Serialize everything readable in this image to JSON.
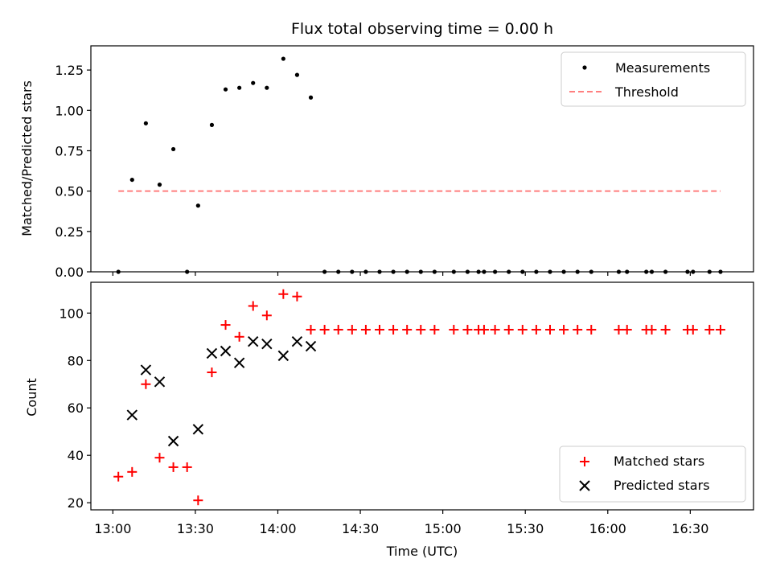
{
  "chart_data": [
    {
      "type": "scatter",
      "title": "Flux total observing time = 0.00 h",
      "xlabel": "",
      "ylabel": "Matched/Predicted stars",
      "ylim": [
        0,
        1.4
      ],
      "yticks": [
        0.0,
        0.25,
        0.5,
        0.75,
        1.0,
        1.25
      ],
      "ytick_labels": [
        "0.00",
        "0.25",
        "0.50",
        "0.75",
        "1.00",
        "1.25"
      ],
      "xlim_minutes": [
        772,
        1013
      ],
      "legend_position": "top-right",
      "series": [
        {
          "name": "Measurements",
          "marker": "dot",
          "color": "#000000",
          "x": [
            "13:02",
            "13:07",
            "13:12",
            "13:17",
            "13:22",
            "13:27",
            "13:31",
            "13:36",
            "13:41",
            "13:46",
            "13:51",
            "13:56",
            "14:02",
            "14:07",
            "14:12",
            "14:17",
            "14:22",
            "14:27",
            "14:32",
            "14:37",
            "14:42",
            "14:47",
            "14:52",
            "14:57",
            "15:04",
            "15:09",
            "15:13",
            "15:15",
            "15:19",
            "15:24",
            "15:29",
            "15:34",
            "15:39",
            "15:44",
            "15:49",
            "15:54",
            "16:04",
            "16:07",
            "16:14",
            "16:16",
            "16:21",
            "16:29",
            "16:31",
            "16:37",
            "16:41"
          ],
          "y": [
            0.0,
            0.57,
            0.92,
            0.54,
            0.76,
            0.0,
            0.41,
            0.91,
            1.13,
            1.14,
            1.17,
            1.14,
            1.32,
            1.22,
            1.08,
            0,
            0,
            0,
            0,
            0,
            0,
            0,
            0,
            0,
            0,
            0,
            0,
            0,
            0,
            0,
            0,
            0,
            0,
            0,
            0,
            0,
            0,
            0,
            0,
            0,
            0,
            0,
            0,
            0,
            0
          ]
        },
        {
          "name": "Threshold",
          "marker": "dashed-line",
          "color": "#ff7f7f",
          "x": [
            "13:02",
            "16:41"
          ],
          "y": [
            0.5,
            0.5
          ]
        }
      ]
    },
    {
      "type": "scatter",
      "title": "",
      "xlabel": "Time (UTC)",
      "ylabel": "Count",
      "ylim": [
        17,
        113
      ],
      "yticks": [
        20,
        40,
        60,
        80,
        100
      ],
      "ytick_labels": [
        "20",
        "40",
        "60",
        "80",
        "100"
      ],
      "xticks": [
        "13:00",
        "13:30",
        "14:00",
        "14:30",
        "15:00",
        "15:30",
        "16:00",
        "16:30"
      ],
      "xticks_minutes": [
        780,
        810,
        840,
        870,
        900,
        930,
        960,
        990
      ],
      "xlim_minutes": [
        772,
        1013
      ],
      "legend_position": "bottom-right",
      "series": [
        {
          "name": "Matched stars",
          "marker": "plus",
          "color": "#ff0000",
          "x": [
            "13:02",
            "13:07",
            "13:12",
            "13:17",
            "13:22",
            "13:27",
            "13:31",
            "13:36",
            "13:41",
            "13:46",
            "13:51",
            "13:56",
            "14:02",
            "14:07",
            "14:12",
            "14:17",
            "14:22",
            "14:27",
            "14:32",
            "14:37",
            "14:42",
            "14:47",
            "14:52",
            "14:57",
            "15:04",
            "15:09",
            "15:13",
            "15:15",
            "15:19",
            "15:24",
            "15:29",
            "15:34",
            "15:39",
            "15:44",
            "15:49",
            "15:54",
            "16:04",
            "16:07",
            "16:14",
            "16:16",
            "16:21",
            "16:29",
            "16:31",
            "16:37",
            "16:41"
          ],
          "y": [
            31,
            33,
            70,
            39,
            35,
            35,
            21,
            75,
            95,
            90,
            103,
            99,
            108,
            107,
            93,
            93,
            93,
            93,
            93,
            93,
            93,
            93,
            93,
            93,
            93,
            93,
            93,
            93,
            93,
            93,
            93,
            93,
            93,
            93,
            93,
            93,
            93,
            93,
            93,
            93,
            93,
            93,
            93,
            93,
            93
          ]
        },
        {
          "name": "Predicted stars",
          "marker": "x",
          "color": "#000000",
          "x": [
            "13:07",
            "13:12",
            "13:17",
            "13:22",
            "13:31",
            "13:36",
            "13:41",
            "13:46",
            "13:51",
            "13:56",
            "14:02",
            "14:07",
            "14:12"
          ],
          "y": [
            57,
            76,
            71,
            46,
            51,
            83,
            84,
            79,
            88,
            87,
            82,
            88,
            86
          ]
        }
      ]
    }
  ]
}
